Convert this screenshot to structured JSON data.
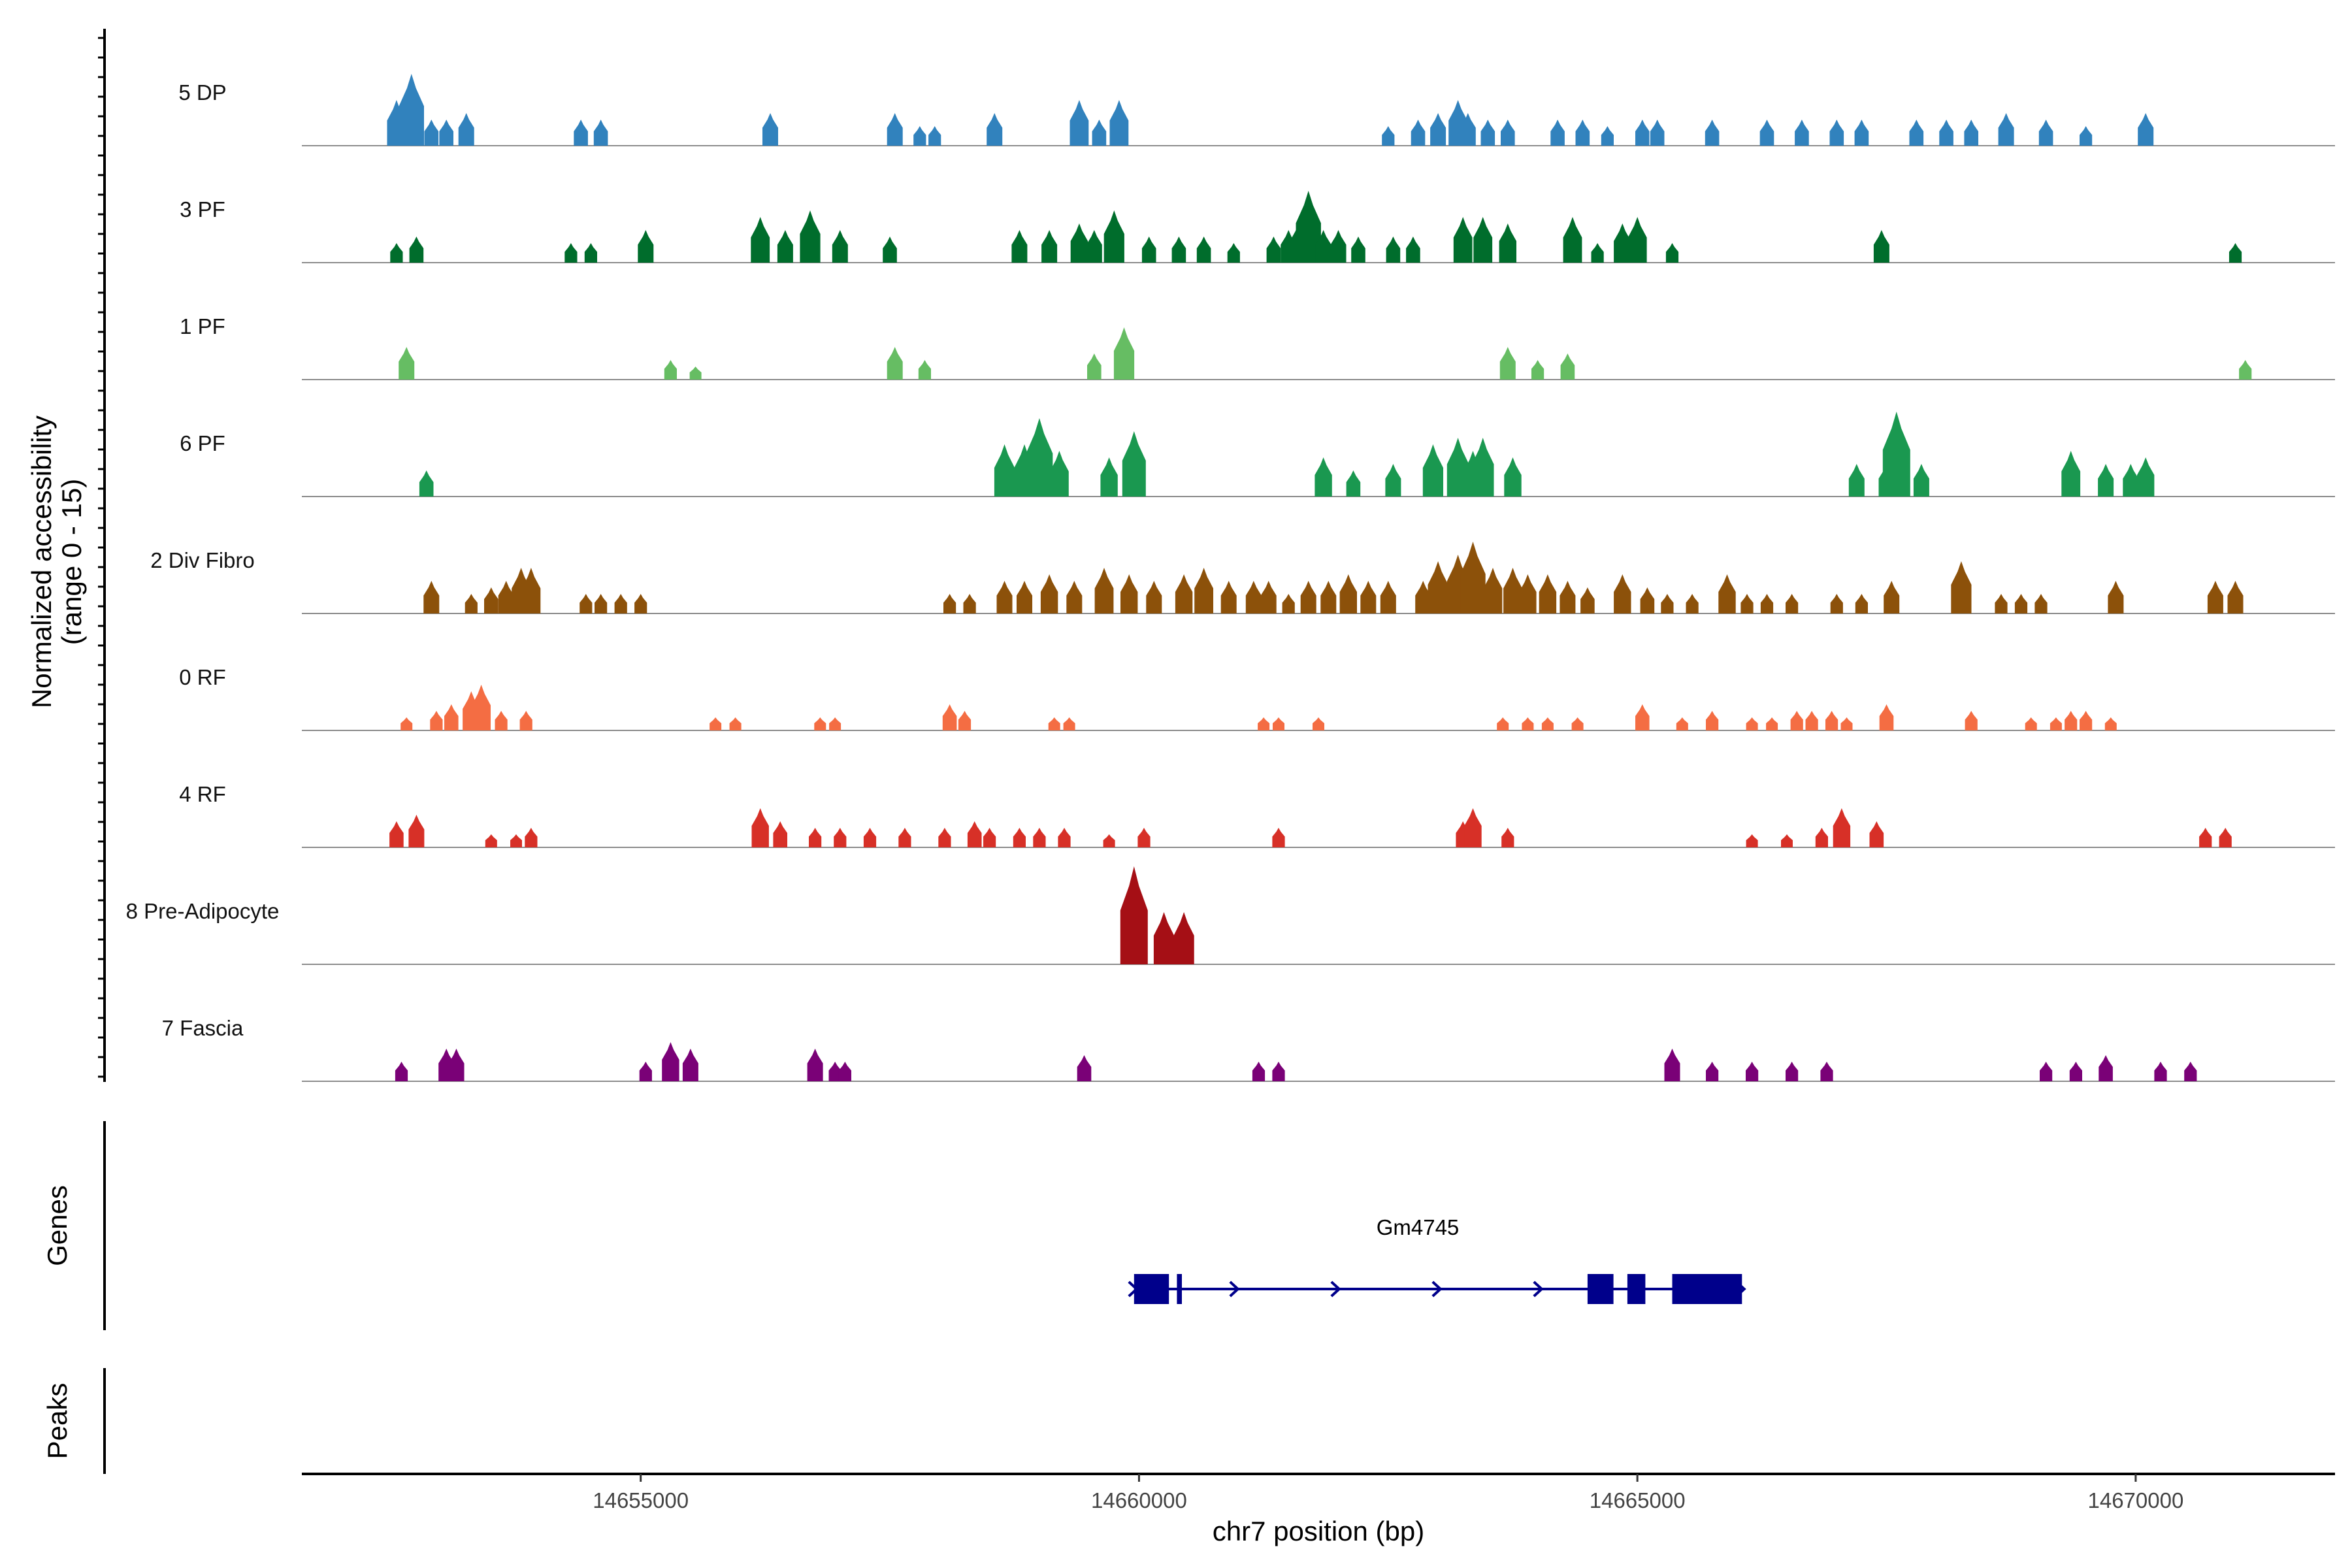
{
  "chart_data": {
    "type": "area",
    "title": "",
    "ylabel_line1": "Normalized accessibility",
    "ylabel_line2": "(range 0 - 15)",
    "xlabel": "chr7 position (bp)",
    "y_range": [
      0,
      15
    ],
    "x_range": [
      14651600,
      14672000
    ],
    "x_ticks": [
      14655000,
      14660000,
      14665000,
      14670000
    ],
    "x_tick_labels": [
      "14655000",
      "14660000",
      "14665000",
      "14670000"
    ],
    "tracks": [
      {
        "name": "5 DP",
        "color": "#3182bd",
        "peaks": [
          [
            14652550,
            7
          ],
          [
            14652700,
            11
          ],
          [
            14652900,
            4
          ],
          [
            14653050,
            4
          ],
          [
            14653250,
            5
          ],
          [
            14654400,
            4
          ],
          [
            14654600,
            4
          ],
          [
            14656300,
            5
          ],
          [
            14657550,
            5
          ],
          [
            14657800,
            3
          ],
          [
            14657950,
            3
          ],
          [
            14658550,
            5
          ],
          [
            14659400,
            7
          ],
          [
            14659600,
            4
          ],
          [
            14659800,
            7
          ],
          [
            14662500,
            3
          ],
          [
            14662800,
            4
          ],
          [
            14663000,
            5
          ],
          [
            14663200,
            7
          ],
          [
            14663300,
            5
          ],
          [
            14663500,
            4
          ],
          [
            14663700,
            4
          ],
          [
            14664200,
            4
          ],
          [
            14664450,
            4
          ],
          [
            14664700,
            3
          ],
          [
            14665050,
            4
          ],
          [
            14665200,
            4
          ],
          [
            14665750,
            4
          ],
          [
            14666300,
            4
          ],
          [
            14666650,
            4
          ],
          [
            14667000,
            4
          ],
          [
            14667250,
            4
          ],
          [
            14667800,
            4
          ],
          [
            14668100,
            4
          ],
          [
            14668350,
            4
          ],
          [
            14668700,
            5
          ],
          [
            14669100,
            4
          ],
          [
            14669500,
            3
          ],
          [
            14670100,
            5
          ]
        ]
      },
      {
        "name": "3 PF",
        "color": "#006d2c",
        "peaks": [
          [
            14652550,
            3
          ],
          [
            14652750,
            4
          ],
          [
            14654300,
            3
          ],
          [
            14654500,
            3
          ],
          [
            14655050,
            5
          ],
          [
            14656200,
            7
          ],
          [
            14656450,
            5
          ],
          [
            14656700,
            8
          ],
          [
            14657000,
            5
          ],
          [
            14657500,
            4
          ],
          [
            14658800,
            5
          ],
          [
            14659100,
            5
          ],
          [
            14659400,
            6
          ],
          [
            14659550,
            5
          ],
          [
            14659750,
            8
          ],
          [
            14660100,
            4
          ],
          [
            14660400,
            4
          ],
          [
            14660650,
            4
          ],
          [
            14660950,
            3
          ],
          [
            14661350,
            4
          ],
          [
            14661500,
            5
          ],
          [
            14661600,
            6
          ],
          [
            14661700,
            11
          ],
          [
            14661850,
            5
          ],
          [
            14662000,
            5
          ],
          [
            14662200,
            4
          ],
          [
            14662550,
            4
          ],
          [
            14662750,
            4
          ],
          [
            14663250,
            7
          ],
          [
            14663450,
            7
          ],
          [
            14663700,
            6
          ],
          [
            14664350,
            7
          ],
          [
            14664600,
            3
          ],
          [
            14664850,
            6
          ],
          [
            14665000,
            7
          ],
          [
            14665350,
            3
          ],
          [
            14667450,
            5
          ],
          [
            14671000,
            3
          ]
        ]
      },
      {
        "name": "1 PF",
        "color": "#66bd63",
        "peaks": [
          [
            14652650,
            5
          ],
          [
            14655300,
            3
          ],
          [
            14655550,
            2
          ],
          [
            14657550,
            5
          ],
          [
            14657850,
            3
          ],
          [
            14659550,
            4
          ],
          [
            14659850,
            8
          ],
          [
            14663700,
            5
          ],
          [
            14664000,
            3
          ],
          [
            14664300,
            4
          ],
          [
            14671100,
            3
          ]
        ]
      },
      {
        "name": "6 PF",
        "color": "#1a9850",
        "peaks": [
          [
            14652850,
            4
          ],
          [
            14658650,
            8
          ],
          [
            14658850,
            8
          ],
          [
            14659000,
            12
          ],
          [
            14659200,
            7
          ],
          [
            14659700,
            6
          ],
          [
            14659950,
            10
          ],
          [
            14661850,
            6
          ],
          [
            14662150,
            4
          ],
          [
            14662550,
            5
          ],
          [
            14662950,
            8
          ],
          [
            14663200,
            9
          ],
          [
            14663350,
            7
          ],
          [
            14663450,
            9
          ],
          [
            14663750,
            6
          ],
          [
            14667200,
            5
          ],
          [
            14667500,
            5
          ],
          [
            14667600,
            13
          ],
          [
            14667850,
            5
          ],
          [
            14669350,
            7
          ],
          [
            14669700,
            5
          ],
          [
            14669950,
            5
          ],
          [
            14670100,
            6
          ]
        ]
      },
      {
        "name": "2 Div Fibro",
        "color": "#8c510a",
        "peaks": [
          [
            14652900,
            5
          ],
          [
            14653300,
            3
          ],
          [
            14653500,
            4
          ],
          [
            14653650,
            5
          ],
          [
            14653800,
            7
          ],
          [
            14653900,
            7
          ],
          [
            14654450,
            3
          ],
          [
            14654600,
            3
          ],
          [
            14654800,
            3
          ],
          [
            14655000,
            3
          ],
          [
            14658100,
            3
          ],
          [
            14658300,
            3
          ],
          [
            14658650,
            5
          ],
          [
            14658850,
            5
          ],
          [
            14659100,
            6
          ],
          [
            14659350,
            5
          ],
          [
            14659650,
            7
          ],
          [
            14659900,
            6
          ],
          [
            14660150,
            5
          ],
          [
            14660450,
            6
          ],
          [
            14660650,
            7
          ],
          [
            14660900,
            5
          ],
          [
            14661150,
            5
          ],
          [
            14661300,
            5
          ],
          [
            14661500,
            3
          ],
          [
            14661700,
            5
          ],
          [
            14661900,
            5
          ],
          [
            14662100,
            6
          ],
          [
            14662300,
            5
          ],
          [
            14662500,
            5
          ],
          [
            14662850,
            5
          ],
          [
            14663000,
            8
          ],
          [
            14663200,
            9
          ],
          [
            14663350,
            11
          ],
          [
            14663550,
            7
          ],
          [
            14663750,
            7
          ],
          [
            14663900,
            6
          ],
          [
            14664100,
            6
          ],
          [
            14664300,
            5
          ],
          [
            14664500,
            4
          ],
          [
            14664850,
            6
          ],
          [
            14665100,
            4
          ],
          [
            14665300,
            3
          ],
          [
            14665550,
            3
          ],
          [
            14665900,
            6
          ],
          [
            14666100,
            3
          ],
          [
            14666300,
            3
          ],
          [
            14666550,
            3
          ],
          [
            14667000,
            3
          ],
          [
            14667250,
            3
          ],
          [
            14667550,
            5
          ],
          [
            14668250,
            8
          ],
          [
            14668650,
            3
          ],
          [
            14668850,
            3
          ],
          [
            14669050,
            3
          ],
          [
            14669800,
            5
          ],
          [
            14670800,
            5
          ],
          [
            14671000,
            5
          ]
        ]
      },
      {
        "name": "0 RF",
        "color": "#f46d43",
        "peaks": [
          [
            14652650,
            2
          ],
          [
            14652950,
            3
          ],
          [
            14653100,
            4
          ],
          [
            14653300,
            6
          ],
          [
            14653400,
            7
          ],
          [
            14653600,
            3
          ],
          [
            14653850,
            3
          ],
          [
            14655750,
            2
          ],
          [
            14655950,
            2
          ],
          [
            14656800,
            2
          ],
          [
            14656950,
            2
          ],
          [
            14658100,
            4
          ],
          [
            14658250,
            3
          ],
          [
            14659150,
            2
          ],
          [
            14659300,
            2
          ],
          [
            14661250,
            2
          ],
          [
            14661400,
            2
          ],
          [
            14661800,
            2
          ],
          [
            14663650,
            2
          ],
          [
            14663900,
            2
          ],
          [
            14664100,
            2
          ],
          [
            14664400,
            2
          ],
          [
            14665050,
            4
          ],
          [
            14665450,
            2
          ],
          [
            14665750,
            3
          ],
          [
            14666150,
            2
          ],
          [
            14666350,
            2
          ],
          [
            14666600,
            3
          ],
          [
            14666750,
            3
          ],
          [
            14666950,
            3
          ],
          [
            14667100,
            2
          ],
          [
            14667500,
            4
          ],
          [
            14668350,
            3
          ],
          [
            14668950,
            2
          ],
          [
            14669200,
            2
          ],
          [
            14669350,
            3
          ],
          [
            14669500,
            3
          ],
          [
            14669750,
            2
          ]
        ]
      },
      {
        "name": "4 RF",
        "color": "#d73027",
        "peaks": [
          [
            14652550,
            4
          ],
          [
            14652750,
            5
          ],
          [
            14653500,
            2
          ],
          [
            14653750,
            2
          ],
          [
            14653900,
            3
          ],
          [
            14656200,
            6
          ],
          [
            14656400,
            4
          ],
          [
            14656750,
            3
          ],
          [
            14657000,
            3
          ],
          [
            14657300,
            3
          ],
          [
            14657650,
            3
          ],
          [
            14658050,
            3
          ],
          [
            14658350,
            4
          ],
          [
            14658500,
            3
          ],
          [
            14658800,
            3
          ],
          [
            14659000,
            3
          ],
          [
            14659250,
            3
          ],
          [
            14659700,
            2
          ],
          [
            14660050,
            3
          ],
          [
            14661400,
            3
          ],
          [
            14663250,
            4
          ],
          [
            14663350,
            6
          ],
          [
            14663700,
            3
          ],
          [
            14666150,
            2
          ],
          [
            14666500,
            2
          ],
          [
            14666850,
            3
          ],
          [
            14667050,
            6
          ],
          [
            14667400,
            4
          ],
          [
            14670700,
            3
          ],
          [
            14670900,
            3
          ]
        ]
      },
      {
        "name": "8 Pre-Adipocyte",
        "color": "#a50f15",
        "peaks": [
          [
            14659950,
            15
          ],
          [
            14660250,
            8
          ],
          [
            14660450,
            8
          ]
        ]
      },
      {
        "name": "7 Fascia",
        "color": "#7a0177",
        "peaks": [
          [
            14652600,
            3
          ],
          [
            14653050,
            5
          ],
          [
            14653150,
            5
          ],
          [
            14655050,
            3
          ],
          [
            14655300,
            6
          ],
          [
            14655500,
            5
          ],
          [
            14656750,
            5
          ],
          [
            14656950,
            3
          ],
          [
            14657050,
            3
          ],
          [
            14659450,
            4
          ],
          [
            14661200,
            3
          ],
          [
            14661400,
            3
          ],
          [
            14665350,
            5
          ],
          [
            14665750,
            3
          ],
          [
            14666150,
            3
          ],
          [
            14666550,
            3
          ],
          [
            14666900,
            3
          ],
          [
            14669100,
            3
          ],
          [
            14669400,
            3
          ],
          [
            14669700,
            4
          ],
          [
            14670250,
            3
          ],
          [
            14670550,
            3
          ]
        ]
      }
    ],
    "gene_track": {
      "label": "Genes",
      "gene_name": "Gm4745",
      "color": "#00008b",
      "start": 14659950,
      "end": 14666050,
      "strand": "+",
      "exons": [
        [
          14659950,
          14660300
        ],
        [
          14660380,
          14660430
        ],
        [
          14664500,
          14664760
        ],
        [
          14664900,
          14665080
        ],
        [
          14665350,
          14666050
        ]
      ]
    },
    "peaks_track": {
      "label": "Peaks"
    }
  }
}
